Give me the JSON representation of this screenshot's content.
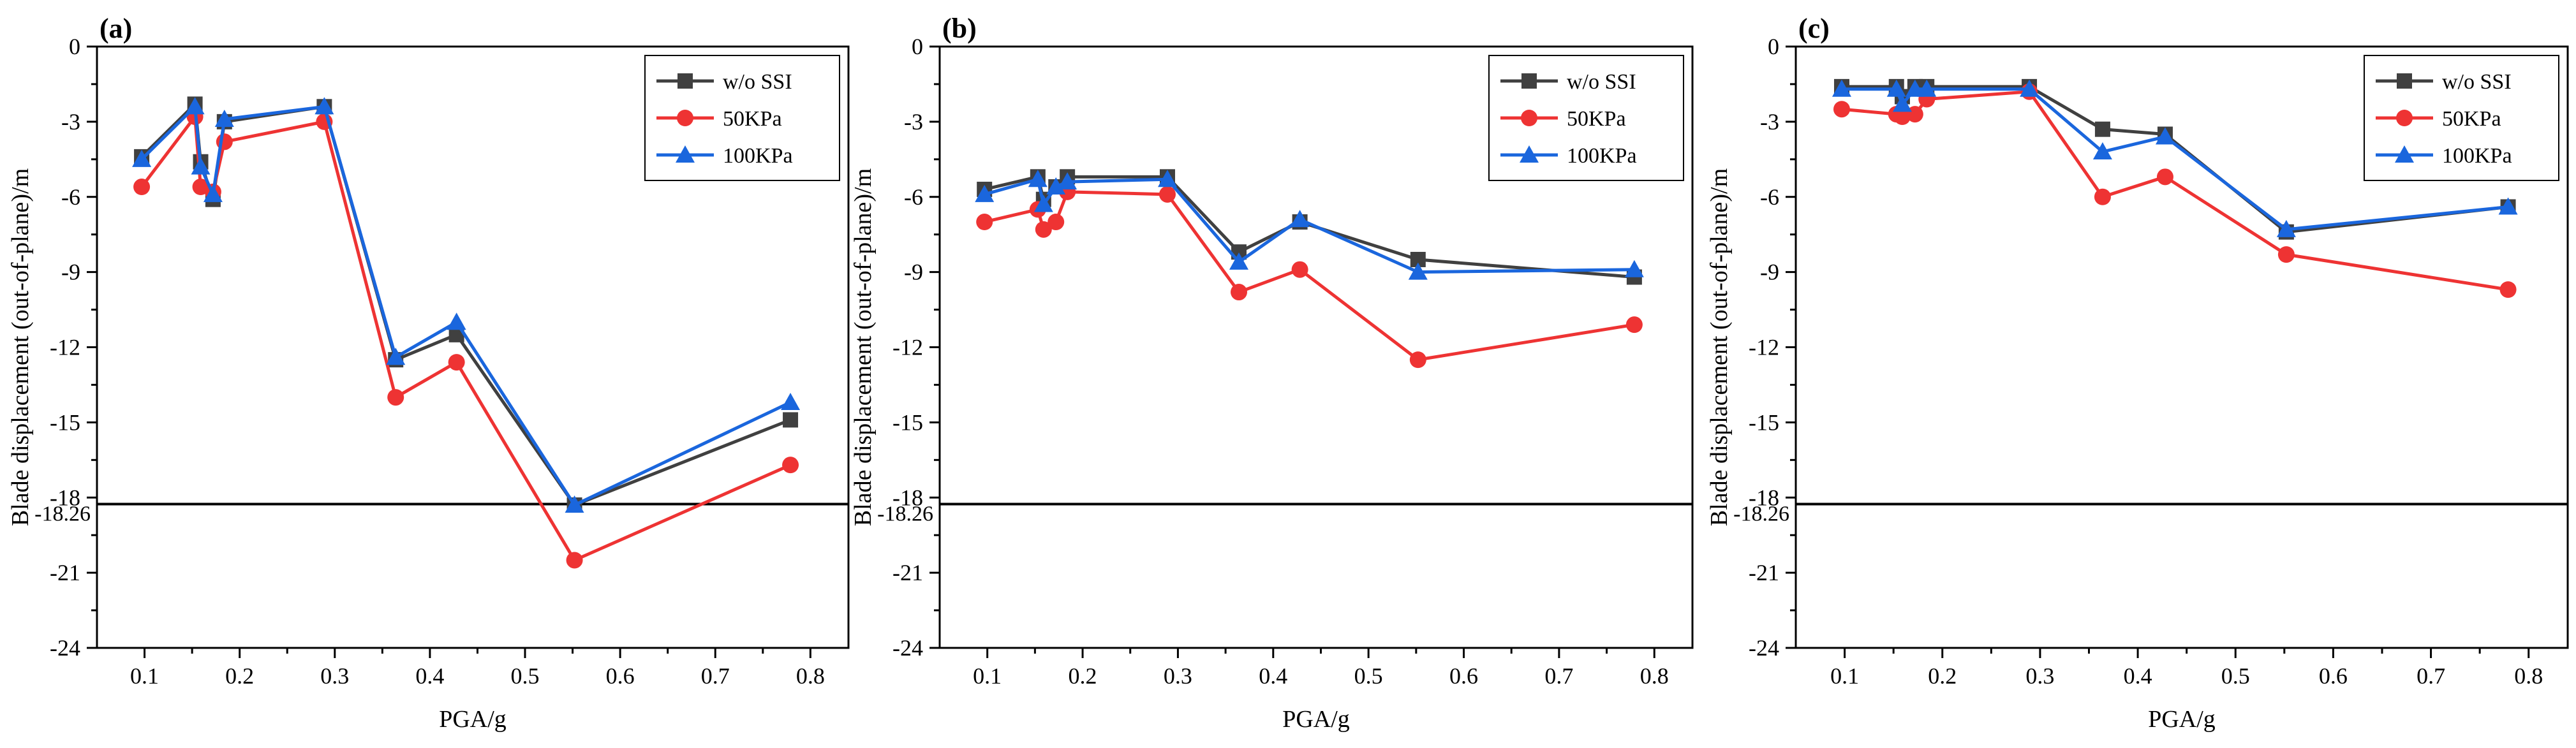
{
  "colors": {
    "wo_ssi": "#404040",
    "kpa50": "#ee3333",
    "kpa100": "#1a66dd",
    "axis": "#000000",
    "ref_line": "#000000"
  },
  "chart_data": [
    {
      "type": "line",
      "panel_label": "(a)",
      "xlabel": "PGA/g",
      "ylabel": "Blade displacement (out-of-plane)/m",
      "xlim": [
        0.05,
        0.84
      ],
      "ylim": [
        -24,
        0
      ],
      "xticks": [
        0.1,
        0.2,
        0.3,
        0.4,
        0.5,
        0.6,
        0.7,
        0.8
      ],
      "xtick_labels": [
        "0.1",
        "0.2",
        "0.3",
        "0.4",
        "0.5",
        "0.6",
        "0.7",
        "0.8"
      ],
      "yticks": [
        0,
        -3,
        -6,
        -9,
        -12,
        -15,
        -18,
        -21,
        -24
      ],
      "ytick_labels": [
        "0",
        "-3",
        "-6",
        "-9",
        "-12",
        "-15",
        "-18",
        "-21",
        "-24"
      ],
      "reference_line": {
        "y": -18.26,
        "label": "-18.26"
      },
      "legend_position": "top-right",
      "x": [
        0.097,
        0.153,
        0.159,
        0.172,
        0.184,
        0.289,
        0.364,
        0.428,
        0.552,
        0.779
      ],
      "series": [
        {
          "name": "w/o SSI",
          "marker": "square",
          "color_key": "wo_ssi",
          "values": [
            -4.4,
            -2.3,
            -4.6,
            -6.1,
            -3.0,
            -2.4,
            -12.5,
            -11.5,
            -18.3,
            -14.9
          ]
        },
        {
          "name": "50KPa",
          "marker": "circle",
          "color_key": "kpa50",
          "values": [
            -5.6,
            -2.8,
            -5.6,
            -5.8,
            -3.8,
            -3.0,
            -14.0,
            -12.6,
            -20.5,
            -16.7
          ]
        },
        {
          "name": "100KPa",
          "marker": "triangle",
          "color_key": "kpa100",
          "values": [
            -4.5,
            -2.4,
            -4.8,
            -5.9,
            -2.9,
            -2.4,
            -12.4,
            -11.0,
            -18.3,
            -14.2
          ]
        }
      ]
    },
    {
      "type": "line",
      "panel_label": "(b)",
      "xlabel": "PGA/g",
      "ylabel": "Blade displacement (out-of-plane)/m",
      "xlim": [
        0.05,
        0.84
      ],
      "ylim": [
        -24,
        0
      ],
      "xticks": [
        0.1,
        0.2,
        0.3,
        0.4,
        0.5,
        0.6,
        0.7,
        0.8
      ],
      "xtick_labels": [
        "0.1",
        "0.2",
        "0.3",
        "0.4",
        "0.5",
        "0.6",
        "0.7",
        "0.8"
      ],
      "yticks": [
        0,
        -3,
        -6,
        -9,
        -12,
        -15,
        -18,
        -21,
        -24
      ],
      "ytick_labels": [
        "0",
        "-3",
        "-6",
        "-9",
        "-12",
        "-15",
        "-18",
        "-21",
        "-24"
      ],
      "reference_line": {
        "y": -18.26,
        "label": "-18.26"
      },
      "legend_position": "top-right",
      "x": [
        0.097,
        0.153,
        0.159,
        0.172,
        0.184,
        0.289,
        0.364,
        0.428,
        0.552,
        0.779
      ],
      "series": [
        {
          "name": "w/o SSI",
          "marker": "square",
          "color_key": "wo_ssi",
          "values": [
            -5.7,
            -5.2,
            -6.1,
            -5.6,
            -5.2,
            -5.2,
            -8.2,
            -7.0,
            -8.5,
            -9.2
          ]
        },
        {
          "name": "50KPa",
          "marker": "circle",
          "color_key": "kpa50",
          "values": [
            -7.0,
            -6.5,
            -7.3,
            -7.0,
            -5.8,
            -5.9,
            -9.8,
            -8.9,
            -12.5,
            -11.1
          ]
        },
        {
          "name": "100KPa",
          "marker": "triangle",
          "color_key": "kpa100",
          "values": [
            -5.9,
            -5.3,
            -6.3,
            -5.6,
            -5.4,
            -5.3,
            -8.6,
            -6.9,
            -9.0,
            -8.9
          ]
        }
      ]
    },
    {
      "type": "line",
      "panel_label": "(c)",
      "xlabel": "PGA/g",
      "ylabel": "Blade displacement (out-of-plane)/m",
      "xlim": [
        0.05,
        0.84
      ],
      "ylim": [
        -24,
        0
      ],
      "xticks": [
        0.1,
        0.2,
        0.3,
        0.4,
        0.5,
        0.6,
        0.7,
        0.8
      ],
      "xtick_labels": [
        "0.1",
        "0.2",
        "0.3",
        "0.4",
        "0.5",
        "0.6",
        "0.7",
        "0.8"
      ],
      "yticks": [
        0,
        -3,
        -6,
        -9,
        -12,
        -15,
        -18,
        -21,
        -24
      ],
      "ytick_labels": [
        "0",
        "-3",
        "-6",
        "-9",
        "-12",
        "-15",
        "-18",
        "-21",
        "-24"
      ],
      "reference_line": {
        "y": -18.26,
        "label": "-18.26"
      },
      "legend_position": "top-right",
      "x": [
        0.097,
        0.153,
        0.159,
        0.172,
        0.184,
        0.289,
        0.364,
        0.428,
        0.552,
        0.779
      ],
      "series": [
        {
          "name": "w/o SSI",
          "marker": "square",
          "color_key": "wo_ssi",
          "values": [
            -1.6,
            -1.6,
            -2.0,
            -1.6,
            -1.6,
            -1.6,
            -3.3,
            -3.5,
            -7.4,
            -6.4
          ]
        },
        {
          "name": "50KPa",
          "marker": "circle",
          "color_key": "kpa50",
          "values": [
            -2.5,
            -2.7,
            -2.8,
            -2.7,
            -2.1,
            -1.8,
            -6.0,
            -5.2,
            -8.3,
            -9.7
          ]
        },
        {
          "name": "100KPa",
          "marker": "triangle",
          "color_key": "kpa100",
          "values": [
            -1.7,
            -1.7,
            -2.3,
            -1.7,
            -1.7,
            -1.7,
            -4.2,
            -3.6,
            -7.3,
            -6.4
          ]
        }
      ]
    }
  ]
}
